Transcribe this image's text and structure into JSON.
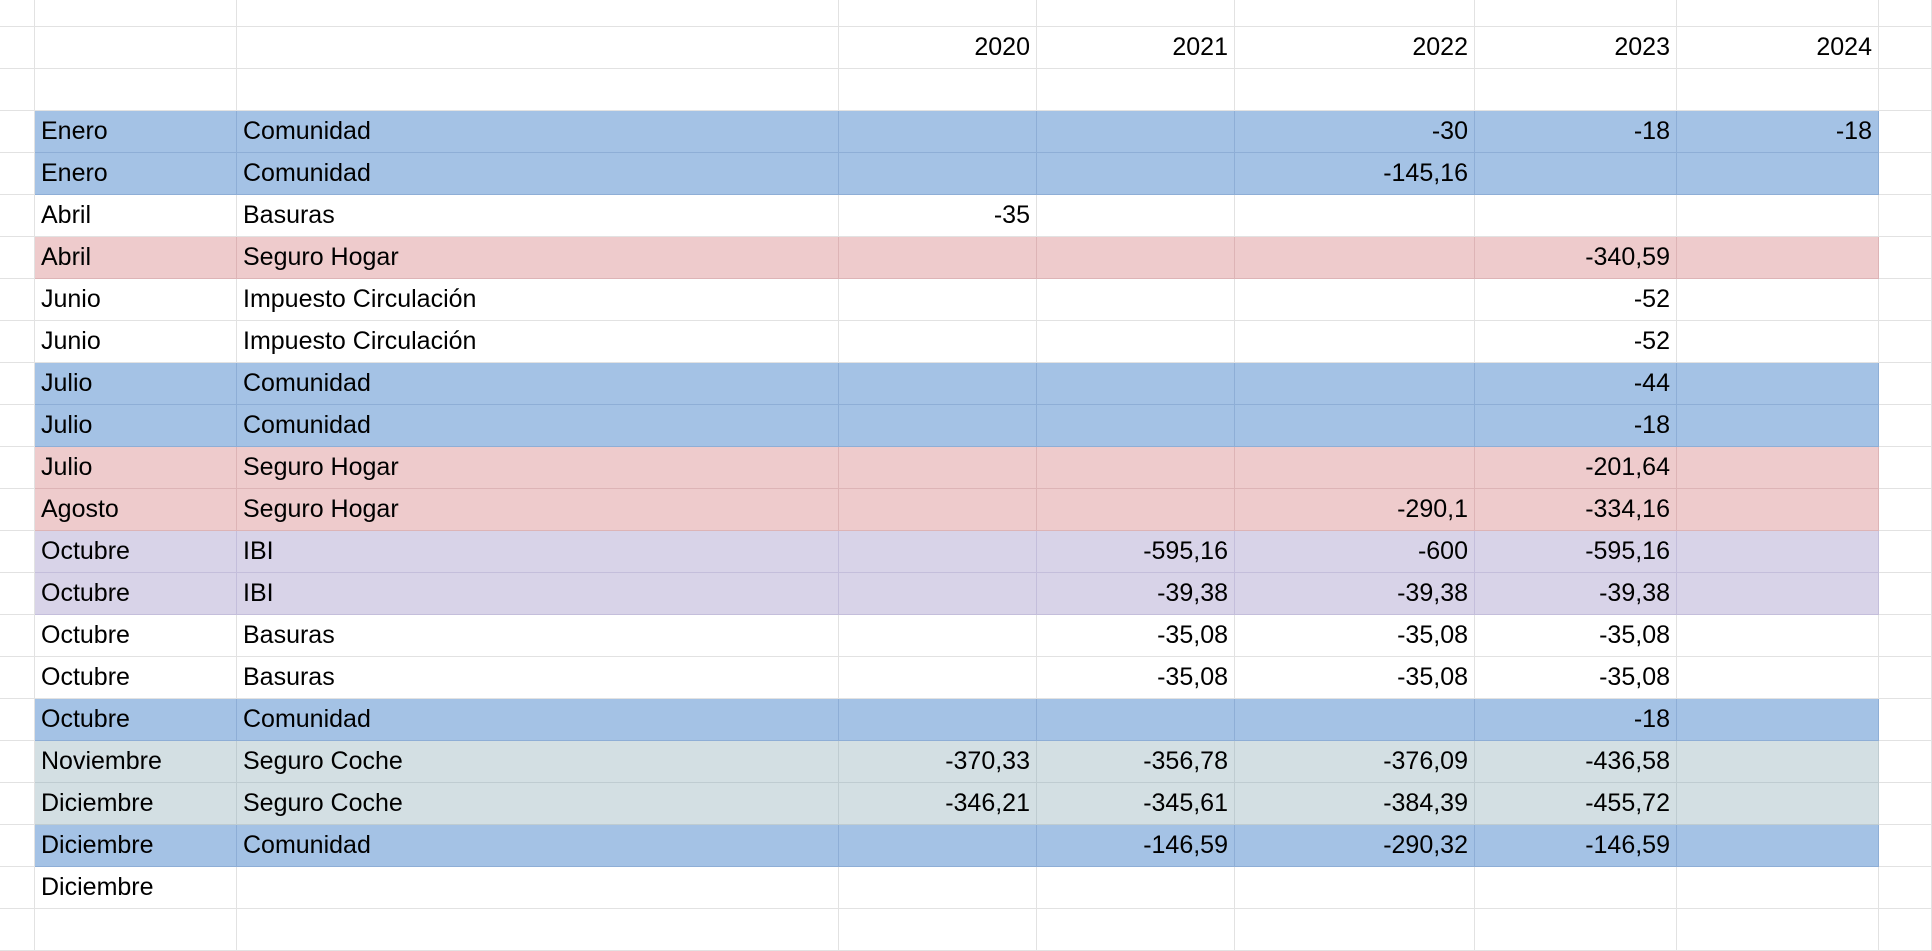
{
  "years": [
    "2020",
    "2021",
    "2022",
    "2023",
    "2024"
  ],
  "rows": [
    {
      "month": "Enero",
      "concept": "Comunidad",
      "color": "blue",
      "v": [
        "",
        "",
        "-30",
        "-18",
        "-18"
      ]
    },
    {
      "month": "Enero",
      "concept": "Comunidad",
      "color": "blue",
      "v": [
        "",
        "",
        "-145,16",
        "",
        ""
      ]
    },
    {
      "month": "Abril",
      "concept": "Basuras",
      "color": "none",
      "v": [
        "-35",
        "",
        "",
        "",
        ""
      ]
    },
    {
      "month": "Abril",
      "concept": "Seguro Hogar",
      "color": "pink",
      "v": [
        "",
        "",
        "",
        "-340,59",
        ""
      ]
    },
    {
      "month": "Junio",
      "concept": "Impuesto Circulación",
      "color": "none",
      "v": [
        "",
        "",
        "",
        "-52",
        ""
      ]
    },
    {
      "month": "Junio",
      "concept": "Impuesto Circulación",
      "color": "none",
      "v": [
        "",
        "",
        "",
        "-52",
        ""
      ]
    },
    {
      "month": "Julio",
      "concept": "Comunidad",
      "color": "blue",
      "v": [
        "",
        "",
        "",
        "-44",
        ""
      ]
    },
    {
      "month": "Julio",
      "concept": "Comunidad",
      "color": "blue",
      "v": [
        "",
        "",
        "",
        "-18",
        ""
      ]
    },
    {
      "month": "Julio",
      "concept": "Seguro Hogar",
      "color": "pink",
      "v": [
        "",
        "",
        "",
        "-201,64",
        ""
      ]
    },
    {
      "month": "Agosto",
      "concept": "Seguro Hogar",
      "color": "pink",
      "v": [
        "",
        "",
        "-290,1",
        "-334,16",
        ""
      ]
    },
    {
      "month": "Octubre",
      "concept": "IBI",
      "color": "lav",
      "v": [
        "",
        "-595,16",
        "-600",
        "-595,16",
        ""
      ]
    },
    {
      "month": "Octubre",
      "concept": "IBI",
      "color": "lav",
      "v": [
        "",
        "-39,38",
        "-39,38",
        "-39,38",
        ""
      ]
    },
    {
      "month": "Octubre",
      "concept": "Basuras",
      "color": "none",
      "v": [
        "",
        "-35,08",
        "-35,08",
        "-35,08",
        ""
      ]
    },
    {
      "month": "Octubre",
      "concept": "Basuras",
      "color": "none",
      "v": [
        "",
        "-35,08",
        "-35,08",
        "-35,08",
        ""
      ]
    },
    {
      "month": "Octubre",
      "concept": "Comunidad",
      "color": "blue",
      "v": [
        "",
        "",
        "",
        "-18",
        ""
      ]
    },
    {
      "month": "Noviembre",
      "concept": "Seguro Coche",
      "color": "gray",
      "v": [
        "-370,33",
        "-356,78",
        "-376,09",
        "-436,58",
        ""
      ]
    },
    {
      "month": "Diciembre",
      "concept": "Seguro Coche",
      "color": "gray",
      "v": [
        "-346,21",
        "-345,61",
        "-384,39",
        "-455,72",
        ""
      ]
    },
    {
      "month": "Diciembre",
      "concept": "Comunidad",
      "color": "blue",
      "v": [
        "",
        "-146,59",
        "-290,32",
        "-146,59",
        ""
      ]
    },
    {
      "month": "Diciembre",
      "concept": "",
      "color": "none",
      "v": [
        "",
        "",
        "",
        "",
        ""
      ]
    }
  ],
  "colors": {
    "blue": "#a4c2e5",
    "pink": "#eecbcc",
    "lav": "#d8d3e8",
    "gray": "#d3dfe3"
  }
}
